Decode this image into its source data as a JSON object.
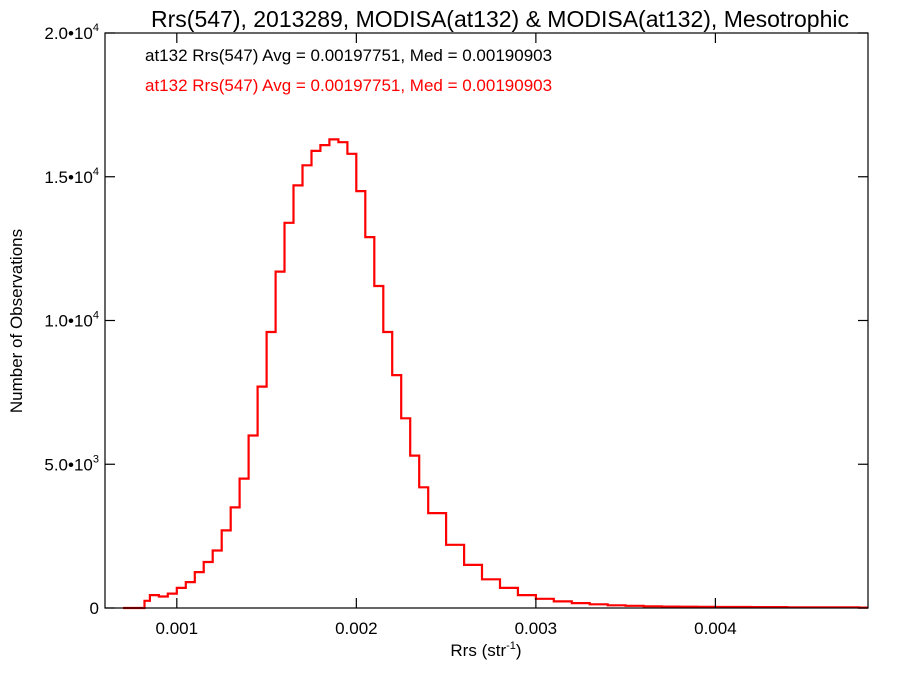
{
  "chart_data": {
    "type": "line",
    "title": "Rrs(547), 2013289, MODISA(at132) & MODISA(at132), Mesotrophic",
    "xlabel": "Rrs (str",
    "xlabel_sup": "-1",
    "xlabel_close": ")",
    "ylabel": "Number of Observations",
    "xlim": [
      0.0006,
      0.00485
    ],
    "ylim": [
      0,
      20000
    ],
    "x_ticks": [
      {
        "value": 0.001,
        "label": "0.001"
      },
      {
        "value": 0.002,
        "label": "0.002"
      },
      {
        "value": 0.003,
        "label": "0.003"
      },
      {
        "value": 0.004,
        "label": "0.004"
      }
    ],
    "y_ticks": [
      {
        "value": 0,
        "mant": "0",
        "exp": ""
      },
      {
        "value": 5000,
        "mant": "5.0•10",
        "exp": "3"
      },
      {
        "value": 10000,
        "mant": "1.0•10",
        "exp": "4"
      },
      {
        "value": 15000,
        "mant": "1.5•10",
        "exp": "4"
      },
      {
        "value": 20000,
        "mant": "2.0•10",
        "exp": "4"
      }
    ],
    "annotations": [
      {
        "text": "at132 Rrs(547) Avg = 0.00197751, Med = 0.00190903",
        "color": "#000000"
      },
      {
        "text": "at132 Rrs(547) Avg = 0.00197751, Med = 0.00190903",
        "color": "#ff0000"
      }
    ],
    "grid": false,
    "series": [
      {
        "color": "#ff0000",
        "step": true,
        "x": [
          0.0007,
          0.00075,
          0.0008,
          0.00082,
          0.00085,
          0.0009,
          0.00095,
          0.001,
          0.00105,
          0.0011,
          0.00115,
          0.0012,
          0.00125,
          0.0013,
          0.00135,
          0.0014,
          0.00145,
          0.0015,
          0.00155,
          0.0016,
          0.00165,
          0.0017,
          0.00175,
          0.0018,
          0.00185,
          0.0019,
          0.00195,
          0.002,
          0.00205,
          0.0021,
          0.00215,
          0.0022,
          0.00225,
          0.0023,
          0.00235,
          0.0024,
          0.0025,
          0.0026,
          0.0027,
          0.0028,
          0.0029,
          0.003,
          0.0031,
          0.0032,
          0.0033,
          0.0034,
          0.0035,
          0.0036,
          0.0037,
          0.0038,
          0.0039,
          0.004,
          0.0042,
          0.0044,
          0.0046,
          0.0048
        ],
        "y": [
          0,
          0,
          0,
          250,
          450,
          400,
          500,
          700,
          900,
          1250,
          1600,
          2000,
          2700,
          3500,
          4500,
          6000,
          7700,
          9600,
          11700,
          13400,
          14700,
          15400,
          15900,
          16100,
          16300,
          16200,
          15800,
          14500,
          12900,
          11200,
          9600,
          8100,
          6600,
          5300,
          4200,
          3300,
          2200,
          1500,
          1000,
          700,
          450,
          320,
          230,
          170,
          130,
          95,
          75,
          60,
          50,
          45,
          40,
          35,
          30,
          25,
          20,
          15
        ]
      }
    ]
  }
}
